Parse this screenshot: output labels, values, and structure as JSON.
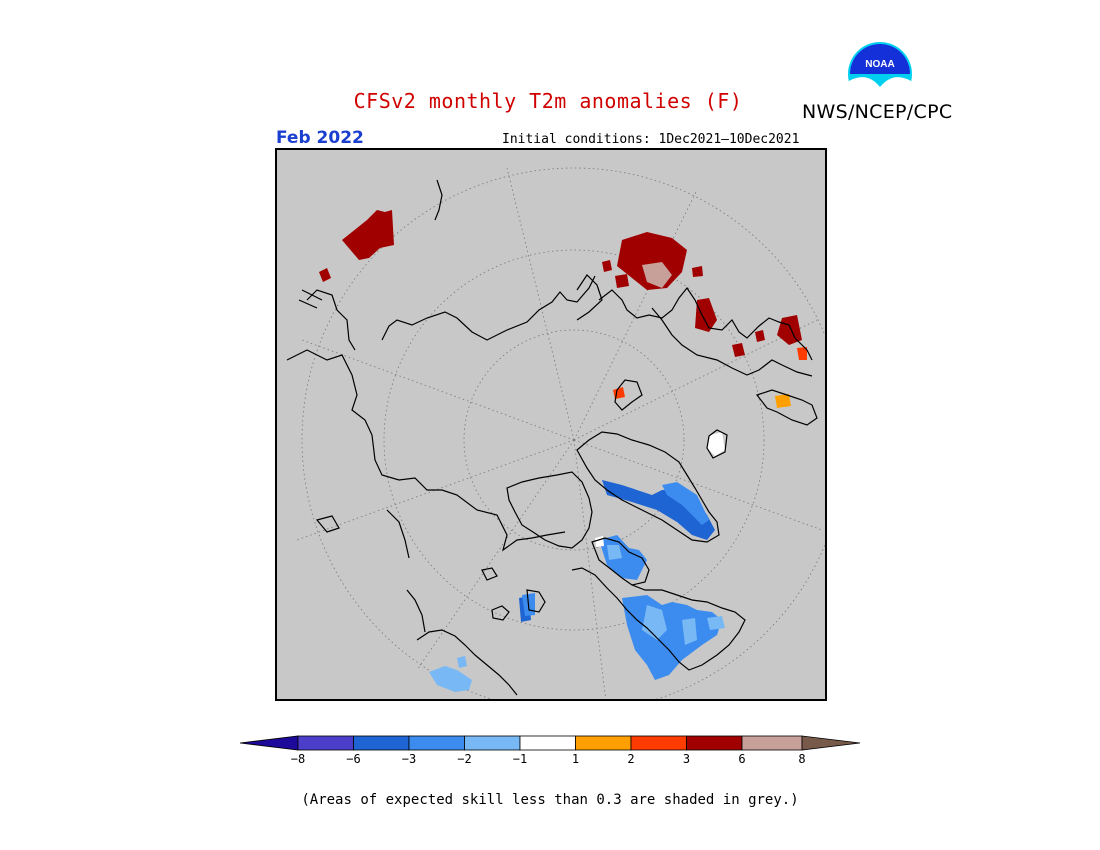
{
  "title": "CFSv2 monthly T2m anomalies (F)",
  "agency": "NWS/NCEP/CPC",
  "logo_text": "NOAA",
  "valid_month": "Feb 2022",
  "initial_conditions": "Initial conditions: 1Dec2021—10Dec2021",
  "colorbar": {
    "ticks": [
      "−8",
      "−6",
      "−3",
      "−2",
      "−1",
      "1",
      "2",
      "3",
      "6",
      "8"
    ],
    "colors": [
      "#1e0a9a",
      "#4b3ec8",
      "#1e64d2",
      "#3c8cf0",
      "#78b9f5",
      "#ffffff",
      "#ffa000",
      "#ff3c00",
      "#a00000",
      "#c8a09a",
      "#785a4b"
    ]
  },
  "footnote": "(Areas of expected skill less than 0.3 are shaded in grey.)",
  "map": {
    "background": "#c8c8c8",
    "projection": "north-polar-stereographic"
  }
}
